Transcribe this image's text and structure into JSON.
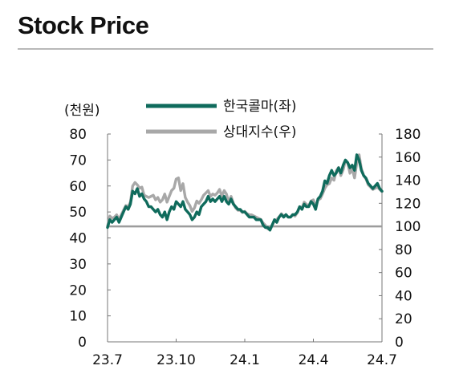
{
  "page": {
    "title": "Stock Price"
  },
  "colors": {
    "stock": "#0f6b5c",
    "relative": "#a8a8a8",
    "axis": "#777777",
    "baseline": "#9c9c9c",
    "rule": "#b9b9b9"
  },
  "chart_data": {
    "type": "line",
    "title": "Stock Price",
    "left_axis": {
      "unit_label": "(천원)",
      "ylim": [
        0,
        80
      ],
      "ticks": [
        "0",
        "10",
        "20",
        "30",
        "40",
        "50",
        "60",
        "70",
        "80"
      ]
    },
    "right_axis": {
      "ylim": [
        0,
        180
      ],
      "ticks": [
        "0",
        "20",
        "40",
        "60",
        "80",
        "100",
        "120",
        "140",
        "160",
        "180"
      ]
    },
    "x_axis": {
      "ticks": [
        "23.7",
        "23.10",
        "24.1",
        "24.4",
        "24.7"
      ],
      "range_months": [
        0,
        12
      ]
    },
    "reference_line": {
      "axis": "right",
      "value": 100
    },
    "legend_position": "top-center",
    "series": [
      {
        "name": "한국콜마(좌)",
        "axis": "left",
        "x": [
          0,
          0.1,
          0.2,
          0.3,
          0.4,
          0.5,
          0.6,
          0.7,
          0.8,
          0.9,
          1.0,
          1.1,
          1.2,
          1.3,
          1.4,
          1.5,
          1.6,
          1.7,
          1.8,
          1.9,
          2.0,
          2.1,
          2.2,
          2.3,
          2.4,
          2.5,
          2.6,
          2.7,
          2.8,
          2.9,
          3.0,
          3.1,
          3.2,
          3.3,
          3.4,
          3.5,
          3.6,
          3.7,
          3.8,
          3.9,
          4.0,
          4.1,
          4.2,
          4.3,
          4.4,
          4.5,
          4.6,
          4.7,
          4.8,
          4.9,
          5.0,
          5.1,
          5.2,
          5.3,
          5.4,
          5.5,
          5.6,
          5.7,
          5.8,
          5.9,
          6.0,
          6.1,
          6.2,
          6.3,
          6.4,
          6.5,
          6.6,
          6.7,
          6.8,
          6.9,
          7.0,
          7.1,
          7.2,
          7.3,
          7.4,
          7.5,
          7.6,
          7.7,
          7.8,
          7.9,
          8.0,
          8.1,
          8.2,
          8.3,
          8.4,
          8.5,
          8.6,
          8.7,
          8.8,
          8.9,
          9.0,
          9.1,
          9.2,
          9.3,
          9.4,
          9.5,
          9.6,
          9.7,
          9.8,
          9.9,
          10.0,
          10.1,
          10.2,
          10.3,
          10.4,
          10.5,
          10.6,
          10.7,
          10.8,
          10.9,
          11.0,
          11.1,
          11.2,
          11.3,
          11.4,
          11.5,
          11.6,
          11.7,
          11.8,
          11.9,
          12.0
        ],
        "y": [
          44,
          47,
          46,
          47,
          48,
          46,
          48,
          50,
          52,
          51,
          53,
          58,
          57,
          59,
          56,
          57,
          55,
          54,
          52,
          52,
          51,
          50,
          51,
          49,
          48,
          50,
          47,
          50,
          52,
          51,
          54,
          53,
          52,
          54,
          51,
          50,
          49,
          47,
          48,
          50,
          49,
          52,
          53,
          54,
          56,
          54,
          55,
          54,
          55,
          56,
          54,
          56,
          54,
          53,
          55,
          53,
          52,
          51,
          51,
          50,
          50,
          49,
          48,
          48,
          48,
          47,
          47,
          47,
          45,
          44,
          44,
          43,
          45,
          47,
          46,
          48,
          49,
          48,
          49,
          48,
          48,
          49,
          49,
          50,
          52,
          51,
          53,
          52,
          52,
          54,
          53,
          51,
          55,
          56,
          58,
          62,
          61,
          64,
          66,
          64,
          65,
          67,
          65,
          68,
          70,
          69,
          67,
          68,
          66,
          72,
          70,
          66,
          64,
          63,
          61,
          60,
          59,
          60,
          61,
          59,
          58
        ],
        "color": "#0f6b5c"
      },
      {
        "name": "상대지수(우)",
        "axis": "right",
        "x": [
          0,
          0.1,
          0.2,
          0.3,
          0.4,
          0.5,
          0.6,
          0.7,
          0.8,
          0.9,
          1.0,
          1.1,
          1.2,
          1.3,
          1.4,
          1.5,
          1.6,
          1.7,
          1.8,
          1.9,
          2.0,
          2.1,
          2.2,
          2.3,
          2.4,
          2.5,
          2.6,
          2.7,
          2.8,
          2.9,
          3.0,
          3.1,
          3.2,
          3.3,
          3.4,
          3.5,
          3.6,
          3.7,
          3.8,
          3.9,
          4.0,
          4.1,
          4.2,
          4.3,
          4.4,
          4.5,
          4.6,
          4.7,
          4.8,
          4.9,
          5.0,
          5.1,
          5.2,
          5.3,
          5.4,
          5.5,
          5.6,
          5.7,
          5.8,
          5.9,
          6.0,
          6.1,
          6.2,
          6.3,
          6.4,
          6.5,
          6.6,
          6.7,
          6.8,
          6.9,
          7.0,
          7.1,
          7.2,
          7.3,
          7.4,
          7.5,
          7.6,
          7.7,
          7.8,
          7.9,
          8.0,
          8.1,
          8.2,
          8.3,
          8.4,
          8.5,
          8.6,
          8.7,
          8.8,
          8.9,
          9.0,
          9.1,
          9.2,
          9.3,
          9.4,
          9.5,
          9.6,
          9.7,
          9.8,
          9.9,
          10.0,
          10.1,
          10.2,
          10.3,
          10.4,
          10.5,
          10.6,
          10.7,
          10.8,
          10.9,
          11.0,
          11.1,
          11.2,
          11.3,
          11.4,
          11.5,
          11.6,
          11.7,
          11.8,
          11.9,
          12.0
        ],
        "y": [
          100,
          109,
          107,
          108,
          110,
          106,
          110,
          114,
          118,
          117,
          121,
          135,
          138,
          136,
          133,
          134,
          127,
          126,
          125,
          126,
          127,
          123,
          125,
          121,
          123,
          128,
          121,
          126,
          131,
          133,
          141,
          142,
          131,
          137,
          125,
          121,
          118,
          113,
          116,
          122,
          120,
          123,
          127,
          129,
          131,
          126,
          128,
          127,
          129,
          132,
          126,
          131,
          128,
          121,
          126,
          120,
          116,
          114,
          114,
          112,
          113,
          111,
          110,
          110,
          109,
          108,
          107,
          106,
          103,
          101,
          98,
          97,
          101,
          105,
          106,
          108,
          111,
          109,
          110,
          108,
          108,
          110,
          109,
          112,
          117,
          116,
          121,
          119,
          118,
          122,
          123,
          117,
          123,
          124,
          128,
          133,
          136,
          137,
          142,
          140,
          148,
          151,
          144,
          149,
          157,
          155,
          146,
          150,
          142,
          155,
          162,
          150,
          144,
          141,
          136,
          134,
          132,
          133,
          134,
          132,
          130
        ],
        "color": "#a8a8a8"
      }
    ]
  }
}
